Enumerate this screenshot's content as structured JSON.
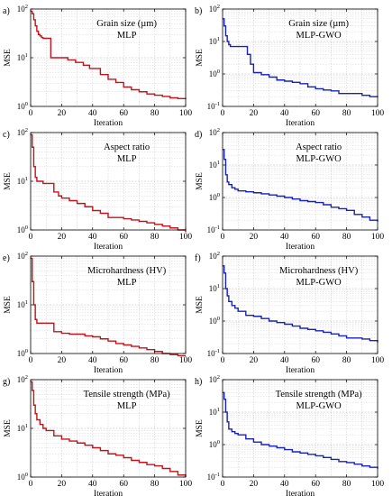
{
  "figure": {
    "common_xlabel": "Iteration",
    "common_ylabel": "MSE"
  },
  "chart_data": [
    {
      "type": "line",
      "letter": "a)",
      "title_line1": "Grain size (µm)",
      "title_line2": "MLP",
      "xlabel": "Iteration",
      "ylabel": "MSE",
      "xlim": [
        0,
        100
      ],
      "ylim": [
        1,
        100
      ],
      "yscale": "log",
      "grid": true,
      "xticks": [
        0,
        20,
        40,
        60,
        80,
        100
      ],
      "yticks": [
        1,
        10,
        100
      ],
      "series": [
        {
          "color": "#c0141c",
          "x": [
            0,
            1,
            2,
            3,
            4,
            5,
            6,
            7,
            8,
            12,
            13,
            23,
            24,
            28,
            29,
            33,
            34,
            38,
            45,
            50,
            55,
            60,
            65,
            70,
            75,
            80,
            85,
            90,
            95,
            100
          ],
          "y": [
            90,
            80,
            60,
            45,
            35,
            30,
            28,
            26,
            25,
            25,
            10,
            10,
            9,
            9,
            8,
            8,
            7,
            6,
            4.5,
            3.6,
            3.1,
            2.5,
            2.2,
            2.0,
            1.8,
            1.7,
            1.6,
            1.5,
            1.45,
            1.4
          ]
        }
      ]
    },
    {
      "type": "line",
      "letter": "b)",
      "title_line1": "Grain size (µm)",
      "title_line2": "MLP-GWO",
      "xlabel": "Iteration",
      "ylabel": "MSE",
      "xlim": [
        0,
        100
      ],
      "ylim": [
        0.1,
        100
      ],
      "yscale": "log",
      "grid": true,
      "xticks": [
        0,
        20,
        40,
        60,
        80,
        100
      ],
      "yticks": [
        0.1,
        1,
        10,
        100
      ],
      "series": [
        {
          "color": "#1a22b0",
          "x": [
            0,
            1,
            2,
            3,
            4,
            5,
            10,
            14,
            16,
            18,
            20,
            25,
            30,
            35,
            40,
            45,
            50,
            55,
            60,
            65,
            70,
            75,
            80,
            85,
            90,
            95,
            100
          ],
          "y": [
            50,
            30,
            15,
            10,
            8,
            7,
            7,
            7,
            4,
            2,
            1.1,
            0.95,
            0.8,
            0.65,
            0.6,
            0.55,
            0.5,
            0.4,
            0.35,
            0.32,
            0.3,
            0.25,
            0.25,
            0.25,
            0.22,
            0.2,
            0.19
          ]
        }
      ]
    },
    {
      "type": "line",
      "letter": "c)",
      "title_line1": "Aspect ratio",
      "title_line2": "MLP",
      "xlabel": "Iteration",
      "ylabel": "MSE",
      "xlim": [
        0,
        100
      ],
      "ylim": [
        1,
        100
      ],
      "yscale": "log",
      "grid": true,
      "xticks": [
        0,
        20,
        40,
        60,
        80,
        100
      ],
      "yticks": [
        1,
        10,
        100
      ],
      "series": [
        {
          "color": "#c0141c",
          "x": [
            0,
            1,
            2,
            3,
            4,
            8,
            10,
            15,
            18,
            20,
            25,
            30,
            35,
            40,
            45,
            50,
            55,
            60,
            65,
            70,
            75,
            80,
            85,
            90,
            95,
            100
          ],
          "y": [
            90,
            50,
            20,
            12,
            10,
            9,
            9,
            6,
            5,
            4.5,
            4,
            3.5,
            3,
            2.5,
            2.2,
            1.8,
            1.8,
            1.7,
            1.6,
            1.5,
            1.4,
            1.3,
            1.2,
            1.1,
            1.0,
            0.9
          ]
        }
      ]
    },
    {
      "type": "line",
      "letter": "d)",
      "title_line1": "Aspect ratio",
      "title_line2": "MLP-GWO",
      "xlabel": "Iteration",
      "ylabel": "MSE",
      "xlim": [
        0,
        100
      ],
      "ylim": [
        0.1,
        100
      ],
      "yscale": "log",
      "grid": true,
      "xticks": [
        0,
        20,
        40,
        60,
        80,
        100
      ],
      "yticks": [
        0.1,
        1,
        10,
        100
      ],
      "series": [
        {
          "color": "#1a22b0",
          "x": [
            0,
            1,
            2,
            3,
            4,
            6,
            8,
            10,
            15,
            20,
            25,
            30,
            35,
            40,
            45,
            50,
            55,
            60,
            65,
            70,
            75,
            80,
            85,
            90,
            95,
            100
          ],
          "y": [
            30,
            15,
            5,
            3,
            2.5,
            2,
            1.8,
            1.6,
            1.5,
            1.4,
            1.3,
            1.2,
            1.1,
            1.0,
            0.9,
            0.8,
            0.75,
            0.7,
            0.6,
            0.5,
            0.45,
            0.4,
            0.3,
            0.25,
            0.2,
            0.18
          ]
        }
      ]
    },
    {
      "type": "line",
      "letter": "e)",
      "title_line1": "Microhardness (HV)",
      "title_line2": "MLP",
      "xlabel": "Iteration",
      "ylabel": "MSE",
      "xlim": [
        0,
        100
      ],
      "ylim": [
        1,
        100
      ],
      "yscale": "log",
      "grid": true,
      "xticks": [
        0,
        20,
        40,
        60,
        80,
        100
      ],
      "yticks": [
        1,
        10,
        100
      ],
      "series": [
        {
          "color": "#c0141c",
          "x": [
            0,
            1,
            2,
            3,
            4,
            10,
            15,
            20,
            25,
            30,
            35,
            40,
            45,
            50,
            55,
            60,
            65,
            70,
            75,
            80,
            85,
            90,
            95,
            100
          ],
          "y": [
            90,
            30,
            10,
            5,
            4.2,
            4.2,
            2.8,
            2.6,
            2.5,
            2.5,
            2.3,
            2.2,
            2.0,
            1.8,
            1.6,
            1.5,
            1.4,
            1.3,
            1.2,
            1.1,
            1.0,
            0.95,
            0.9,
            0.9
          ]
        }
      ]
    },
    {
      "type": "line",
      "letter": "f)",
      "title_line1": "Microhardness (HV)",
      "title_line2": "MLP-GWO",
      "xlabel": "Iteration",
      "ylabel": "MSE",
      "xlim": [
        0,
        100
      ],
      "ylim": [
        0.1,
        100
      ],
      "yscale": "log",
      "grid": true,
      "xticks": [
        0,
        20,
        40,
        60,
        80,
        100
      ],
      "yticks": [
        0.1,
        1,
        10,
        100
      ],
      "series": [
        {
          "color": "#1a22b0",
          "x": [
            0,
            1,
            2,
            3,
            4,
            6,
            8,
            10,
            15,
            20,
            25,
            30,
            35,
            40,
            45,
            50,
            55,
            60,
            65,
            70,
            75,
            80,
            85,
            90,
            95,
            100
          ],
          "y": [
            50,
            30,
            10,
            6,
            4,
            3,
            2.5,
            2,
            1.5,
            1.4,
            1.2,
            1.0,
            0.9,
            0.8,
            0.7,
            0.6,
            0.55,
            0.5,
            0.45,
            0.4,
            0.35,
            0.3,
            0.3,
            0.28,
            0.25,
            0.22
          ]
        }
      ]
    },
    {
      "type": "line",
      "letter": "g)",
      "title_line1": "Tensile strength (MPa)",
      "title_line2": "MLP",
      "xlabel": "Iteration",
      "ylabel": "MSE",
      "xlim": [
        0,
        100
      ],
      "ylim": [
        1,
        100
      ],
      "yscale": "log",
      "grid": true,
      "xticks": [
        0,
        20,
        40,
        60,
        80,
        100
      ],
      "yticks": [
        1,
        10,
        100
      ],
      "series": [
        {
          "color": "#c0141c",
          "x": [
            0,
            1,
            2,
            3,
            4,
            6,
            8,
            10,
            15,
            20,
            25,
            30,
            35,
            40,
            45,
            50,
            55,
            60,
            65,
            70,
            75,
            80,
            85,
            90,
            95,
            100
          ],
          "y": [
            90,
            60,
            30,
            20,
            15,
            12,
            10,
            9,
            7,
            6,
            5.5,
            5,
            4.5,
            4,
            3.5,
            3,
            2.8,
            2.5,
            2.2,
            2.0,
            1.8,
            1.7,
            1.5,
            1.3,
            1.1,
            1.0
          ]
        }
      ]
    },
    {
      "type": "line",
      "letter": "h)",
      "title_line1": "Tensile strength (MPa)",
      "title_line2": "MLP-GWO",
      "xlabel": "Iteration",
      "ylabel": "MSE",
      "xlim": [
        0,
        100
      ],
      "ylim": [
        0.1,
        100
      ],
      "yscale": "log",
      "grid": true,
      "xticks": [
        0,
        20,
        40,
        60,
        80,
        100
      ],
      "yticks": [
        0.1,
        1,
        10,
        100
      ],
      "series": [
        {
          "color": "#1a22b0",
          "x": [
            0,
            1,
            2,
            3,
            4,
            6,
            8,
            10,
            15,
            20,
            25,
            30,
            35,
            40,
            45,
            50,
            55,
            60,
            65,
            70,
            75,
            80,
            85,
            90,
            95,
            100
          ],
          "y": [
            40,
            25,
            10,
            5,
            3,
            2.5,
            2.2,
            2,
            1.5,
            1.2,
            1.0,
            0.9,
            0.8,
            0.7,
            0.6,
            0.55,
            0.5,
            0.45,
            0.4,
            0.35,
            0.3,
            0.28,
            0.25,
            0.22,
            0.2,
            0.18
          ]
        }
      ]
    }
  ]
}
